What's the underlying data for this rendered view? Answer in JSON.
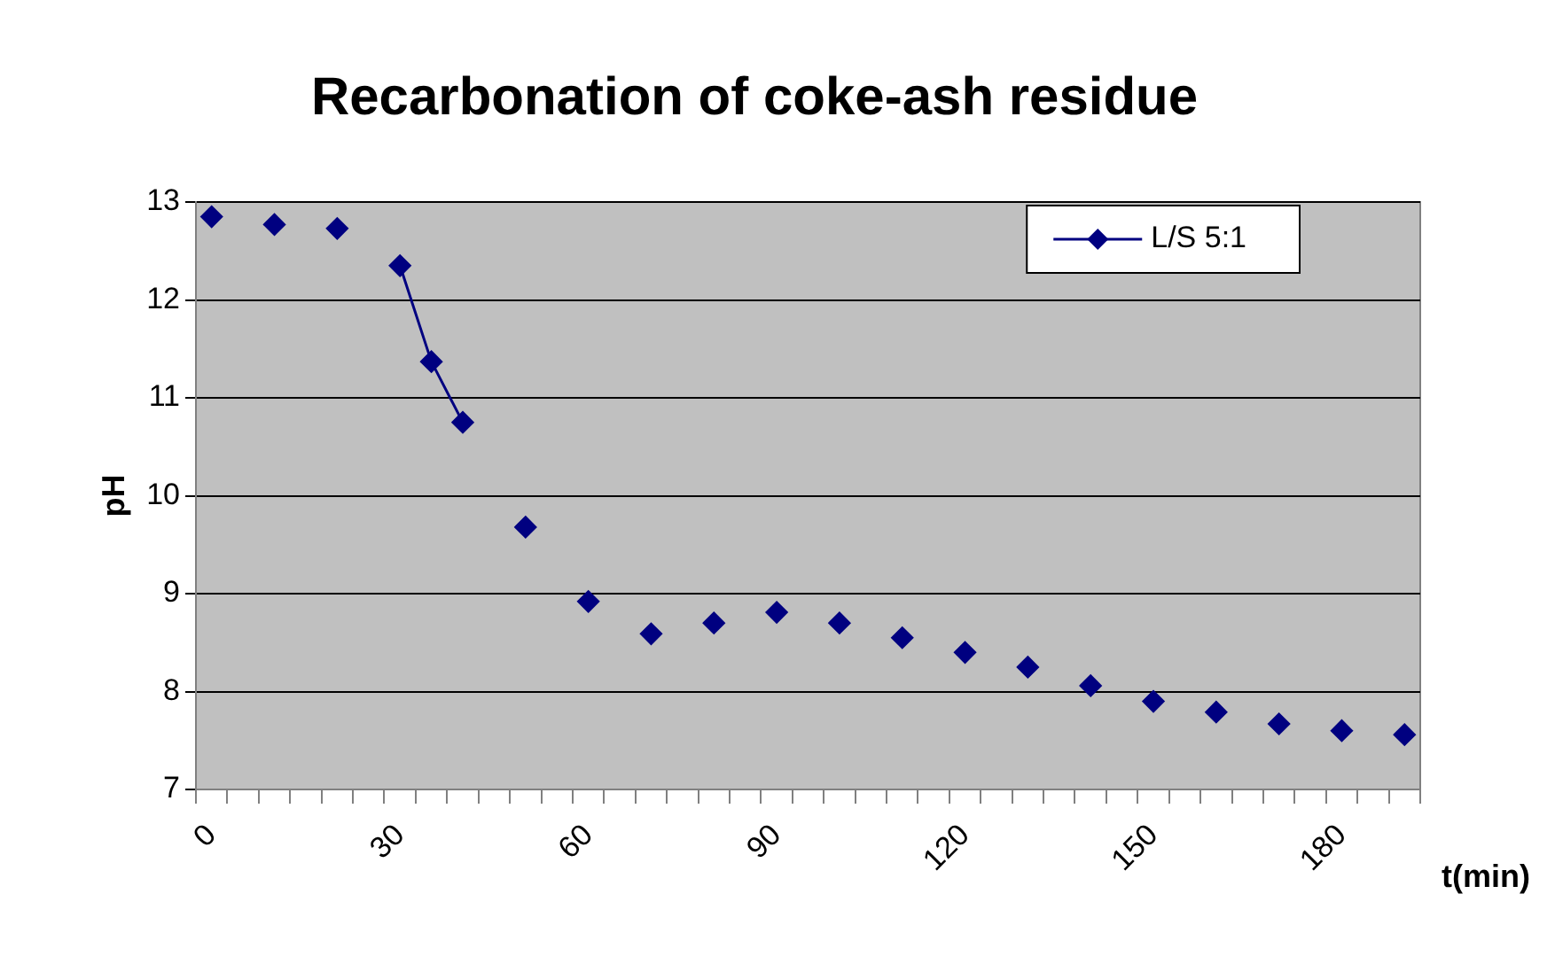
{
  "chart_data": {
    "type": "line",
    "title": "Recarbonation of coke-ash residue",
    "xlabel": "t(min)",
    "ylabel": "pH",
    "categories": [
      "0",
      null,
      null,
      null,
      null,
      null,
      "30",
      null,
      null,
      null,
      null,
      null,
      "60",
      null,
      null,
      null,
      null,
      null,
      "90",
      null,
      null,
      null,
      null,
      null,
      "120",
      null,
      null,
      null,
      null,
      null,
      "150",
      null,
      null,
      null,
      null,
      null,
      "180",
      null,
      null
    ],
    "series": [
      {
        "name": "L/S 5:1",
        "color": "#000080",
        "values": [
          12.85,
          null,
          12.77,
          null,
          12.73,
          null,
          12.35,
          11.37,
          10.75,
          null,
          9.68,
          null,
          8.92,
          null,
          8.59,
          null,
          8.7,
          null,
          8.81,
          null,
          8.7,
          null,
          8.55,
          null,
          8.4,
          null,
          8.25,
          null,
          8.06,
          null,
          7.9,
          null,
          7.79,
          null,
          7.67,
          null,
          7.6,
          null,
          7.56
        ]
      }
    ],
    "ylim": [
      7,
      13
    ],
    "yticks": [
      7,
      8,
      9,
      10,
      11,
      12,
      13
    ],
    "grid": "y",
    "legend": "top right",
    "marker": "diamond",
    "line_style": "solid"
  }
}
